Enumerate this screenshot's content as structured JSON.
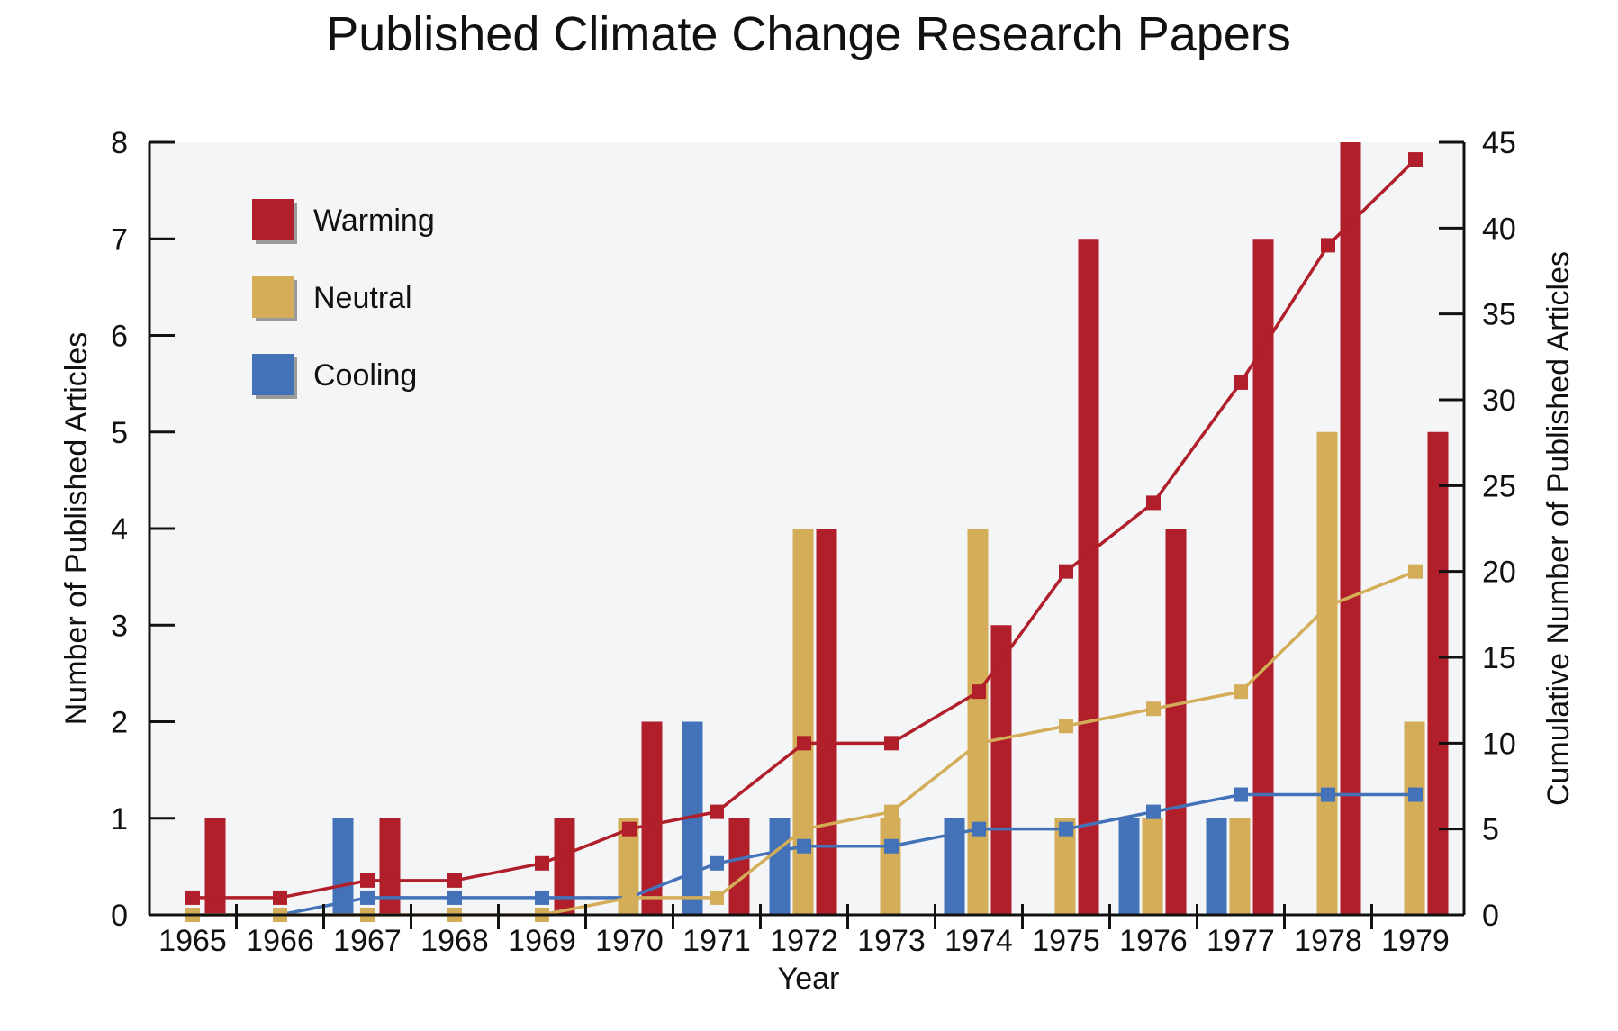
{
  "chart_data": {
    "type": "bar",
    "title": "Published Climate Change Research Papers",
    "xlabel": "Year",
    "ylabel": "Number of Published Articles",
    "y2label": "Cumulative Number of Published Articles",
    "ylim": [
      0,
      8
    ],
    "y2lim": [
      0,
      45
    ],
    "yticks": [
      "0",
      "1",
      "2",
      "3",
      "4",
      "5",
      "6",
      "7",
      "8"
    ],
    "y2ticks": [
      "0",
      "5",
      "10",
      "15",
      "20",
      "25",
      "30",
      "35",
      "40",
      "45"
    ],
    "categories": [
      "1965",
      "1966",
      "1967",
      "1968",
      "1969",
      "1970",
      "1971",
      "1972",
      "1973",
      "1974",
      "1975",
      "1976",
      "1977",
      "1978",
      "1979"
    ],
    "legend_position": "top-left",
    "grid": false,
    "series": [
      {
        "name": "Warming",
        "color": "#b01f2a",
        "values": [
          1,
          0,
          1,
          0,
          1,
          2,
          1,
          4,
          0,
          3,
          7,
          4,
          7,
          8,
          5
        ]
      },
      {
        "name": "Neutral",
        "color": "#d4ad58",
        "values": [
          0,
          0,
          0,
          0,
          0,
          1,
          0,
          4,
          1,
          4,
          1,
          1,
          1,
          5,
          2
        ]
      },
      {
        "name": "Cooling",
        "color": "#4472b8",
        "values": [
          0,
          0,
          1,
          0,
          0,
          0,
          2,
          1,
          0,
          1,
          0,
          1,
          1,
          0,
          0
        ]
      }
    ],
    "cumulative_series": [
      {
        "name": "Warming",
        "color": "#b01f2a",
        "values": [
          1,
          1,
          2,
          2,
          3,
          5,
          6,
          10,
          10,
          13,
          20,
          24,
          31,
          39,
          44
        ]
      },
      {
        "name": "Neutral",
        "color": "#d4ad58",
        "values": [
          0,
          0,
          0,
          0,
          0,
          1,
          1,
          5,
          6,
          10,
          11,
          12,
          13,
          18,
          20
        ]
      },
      {
        "name": "Cooling",
        "color": "#4472b8",
        "values": [
          0,
          0,
          1,
          1,
          1,
          1,
          3,
          4,
          4,
          5,
          5,
          6,
          7,
          7,
          7
        ]
      }
    ]
  }
}
